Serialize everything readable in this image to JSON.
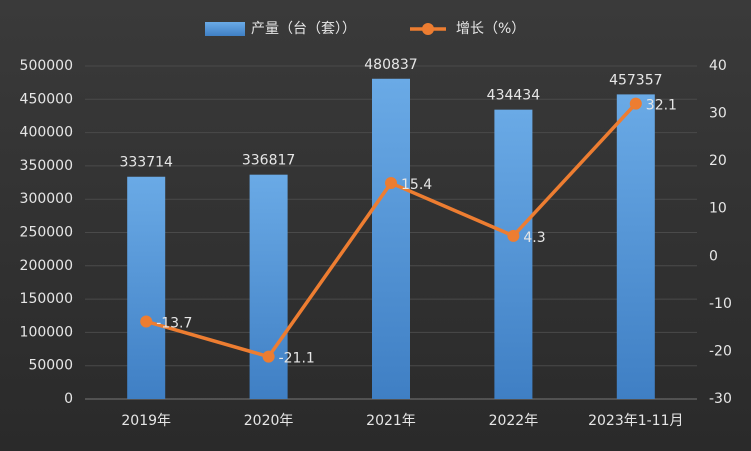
{
  "chart_data": {
    "type": "bar",
    "categories": [
      "2019年",
      "2020年",
      "2021年",
      "2022年",
      "2023年1-11月"
    ],
    "series": [
      {
        "name": "产量（台（套））",
        "type": "bar",
        "color": "#5b9bd5",
        "values": [
          333714,
          336817,
          480837,
          434434,
          457357
        ]
      },
      {
        "name": "增长（%）",
        "type": "line",
        "axis": "y2",
        "color": "#ed7d31",
        "values": [
          -13.7,
          -21.1,
          15.4,
          4.3,
          32.1
        ]
      }
    ],
    "ylim": [
      0,
      500000
    ],
    "yticks": [
      0,
      50000,
      100000,
      150000,
      200000,
      250000,
      300000,
      350000,
      400000,
      450000,
      500000
    ],
    "y2lim": [
      -30,
      40
    ],
    "y2ticks": [
      -30,
      -20,
      -10,
      0,
      10,
      20,
      30,
      40
    ],
    "grid": true
  }
}
